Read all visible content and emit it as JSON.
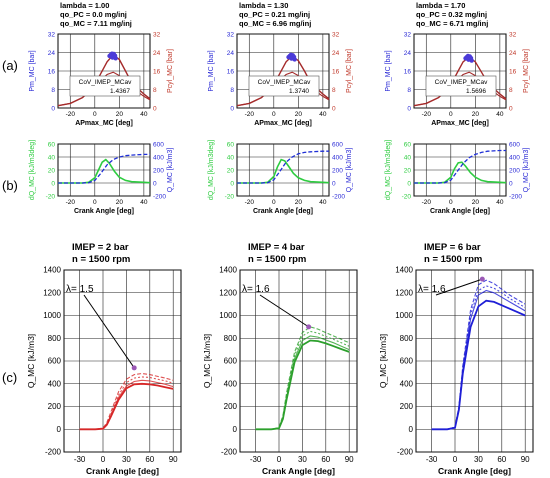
{
  "row_labels": [
    "(a)",
    "(b)",
    "(c)"
  ],
  "colors": {
    "blue_axis": "#2b2bd6",
    "red_axis": "#c0392b",
    "green_axis": "#2ecc40",
    "grid": "#222222"
  },
  "chart_data": [
    {
      "id": "a1",
      "type": "line",
      "header": [
        "lambda = 1.00",
        "qo_PC = 0.0 mg/inj",
        "qo_MC = 7.11 mg/inj"
      ],
      "xlabel": "APmax_MC [deg]",
      "ylabel": "Pm_MC [bar]",
      "y2label": "Pcyl_MC [bar]",
      "xlim": [
        -30,
        45
      ],
      "xticks": [
        -20,
        0,
        20,
        40
      ],
      "ylim": [
        0,
        32
      ],
      "yticks": [
        0,
        8,
        16,
        24,
        32
      ],
      "y2lim": [
        0,
        32
      ],
      "y2ticks": [
        0,
        8,
        16,
        24,
        32
      ],
      "box_label": "CoV_IMEP_MCav",
      "box_value": "1.4367",
      "series": [
        {
          "role": "motored",
          "axis": "y2",
          "x": [
            -30,
            -20,
            -10,
            0,
            5,
            10,
            15,
            20,
            25,
            30,
            40,
            45
          ],
          "y": [
            1,
            2,
            4.5,
            9,
            12,
            14.5,
            15.5,
            14,
            11.5,
            9,
            5,
            3.5
          ]
        },
        {
          "role": "firing",
          "axis": "y2",
          "x": [
            -30,
            -20,
            -10,
            0,
            5,
            10,
            15,
            20,
            25,
            30,
            40,
            45
          ],
          "y": [
            1,
            2,
            4.5,
            10,
            15,
            20,
            23,
            21,
            16,
            11,
            6,
            4
          ]
        }
      ],
      "scatter": {
        "x": [
          12,
          13,
          14,
          15,
          16,
          17,
          13.5,
          15.5,
          16.5,
          14.5
        ],
        "y": [
          22.5,
          23,
          23.5,
          22.8,
          22,
          21.5,
          22.2,
          23.4,
          22.6,
          21.8
        ]
      }
    },
    {
      "id": "a2",
      "type": "line",
      "header": [
        "lambda = 1.30",
        "qo_PC = 0.21 mg/inj",
        "qo_MC = 6.96 mg/inj"
      ],
      "xlabel": "APmax_MC [deg]",
      "ylabel": "Pm_MC [bar]",
      "y2label": "Pcyl_MC [bar]",
      "xlim": [
        -30,
        45
      ],
      "xticks": [
        -20,
        0,
        20,
        40
      ],
      "ylim": [
        0,
        32
      ],
      "yticks": [
        0,
        8,
        16,
        24,
        32
      ],
      "y2lim": [
        0,
        32
      ],
      "y2ticks": [
        0,
        8,
        16,
        24,
        32
      ],
      "box_label": "CoV_IMEP_MCav",
      "box_value": "1.3740",
      "series": [
        {
          "role": "motored",
          "axis": "y2",
          "x": [
            -30,
            -20,
            -10,
            0,
            5,
            10,
            15,
            20,
            25,
            30,
            40,
            45
          ],
          "y": [
            1,
            2,
            4.5,
            9,
            12,
            14.5,
            15.5,
            14,
            11.5,
            9,
            5,
            3.5
          ]
        },
        {
          "role": "firing",
          "axis": "y2",
          "x": [
            -30,
            -20,
            -10,
            0,
            5,
            10,
            15,
            20,
            25,
            30,
            40,
            45
          ],
          "y": [
            1,
            2,
            4.5,
            10,
            15,
            20,
            22.5,
            20.5,
            16,
            11,
            6,
            4
          ]
        }
      ],
      "scatter": {
        "x": [
          12,
          13,
          14,
          15,
          16,
          17,
          13.5,
          15.5,
          16.5,
          14.5
        ],
        "y": [
          22,
          22.5,
          23,
          22.3,
          21.5,
          21,
          21.8,
          22.8,
          22.1,
          21.4
        ]
      }
    },
    {
      "id": "a3",
      "type": "line",
      "header": [
        "lambda = 1.70",
        "qo_PC = 0.32 mg/inj",
        "qo_MC = 6.71 mg/inj"
      ],
      "xlabel": "APmax_MC [deg]",
      "ylabel": "Pm_MC [bar]",
      "y2label": "Pcyl_MC [bar]",
      "xlim": [
        -30,
        45
      ],
      "xticks": [
        -20,
        0,
        20,
        40
      ],
      "ylim": [
        0,
        32
      ],
      "yticks": [
        0,
        8,
        16,
        24,
        32
      ],
      "y2lim": [
        0,
        32
      ],
      "y2ticks": [
        0,
        8,
        16,
        24,
        32
      ],
      "box_label": "CoV_IMEP_MCav",
      "box_value": "1.5696",
      "series": [
        {
          "role": "motored",
          "axis": "y2",
          "x": [
            -30,
            -20,
            -10,
            0,
            5,
            10,
            15,
            20,
            25,
            30,
            40,
            45
          ],
          "y": [
            1,
            2,
            4.5,
            9,
            12,
            14.5,
            15.5,
            14,
            11.5,
            9,
            5,
            3.5
          ]
        },
        {
          "role": "firing",
          "axis": "y2",
          "x": [
            -30,
            -20,
            -10,
            0,
            5,
            10,
            15,
            20,
            25,
            30,
            40,
            45
          ],
          "y": [
            1,
            2,
            4.5,
            10,
            15,
            20,
            22,
            20,
            15.5,
            11,
            6,
            4
          ]
        }
      ],
      "scatter": {
        "x": [
          12,
          13,
          14,
          15,
          16,
          17,
          13.5,
          15.5,
          16.5,
          14.5
        ],
        "y": [
          21.5,
          22,
          22.5,
          21.8,
          21,
          20.5,
          21.3,
          22.3,
          21.6,
          20.9
        ]
      }
    },
    {
      "id": "b1",
      "type": "line",
      "xlabel": "Crank Angle [deg]",
      "ylabel": "dQ_MC [kJ/m3deg]",
      "y2label": "Q_MC [kJ/m3]",
      "xlim": [
        -30,
        45
      ],
      "xticks": [
        -20,
        0,
        20,
        40
      ],
      "ylim": [
        -20,
        60
      ],
      "yticks": [
        -20,
        0,
        20,
        40,
        60
      ],
      "y2lim": [
        -200,
        600
      ],
      "y2ticks": [
        -200,
        0,
        200,
        400,
        600
      ],
      "series": [
        {
          "role": "dQ",
          "axis": "y",
          "x": [
            -30,
            -10,
            -5,
            0,
            3,
            6,
            9,
            12,
            16,
            20,
            25,
            30,
            40,
            45
          ],
          "y": [
            0,
            0,
            1,
            8,
            20,
            32,
            36,
            30,
            18,
            9,
            4,
            2,
            1,
            0.5
          ]
        },
        {
          "role": "Q",
          "axis": "y2",
          "x": [
            -30,
            -10,
            -5,
            0,
            5,
            10,
            15,
            20,
            25,
            30,
            40,
            45
          ],
          "y": [
            0,
            0,
            5,
            40,
            150,
            280,
            360,
            400,
            420,
            430,
            440,
            440
          ]
        }
      ]
    },
    {
      "id": "b2",
      "type": "line",
      "xlabel": "Crank Angle [deg]",
      "ylabel": "dQ_MC [kJ/m3deg]",
      "y2label": "Q_MC [kJ/m3]",
      "xlim": [
        -30,
        45
      ],
      "xticks": [
        -20,
        0,
        20,
        40
      ],
      "ylim": [
        -20,
        60
      ],
      "yticks": [
        -20,
        0,
        20,
        40,
        60
      ],
      "y2lim": [
        -200,
        600
      ],
      "y2ticks": [
        -200,
        0,
        200,
        400,
        600
      ],
      "series": [
        {
          "role": "dQ",
          "axis": "y",
          "x": [
            -30,
            -10,
            -5,
            0,
            3,
            6,
            9,
            12,
            16,
            20,
            25,
            30,
            40,
            45
          ],
          "y": [
            0,
            0,
            1,
            10,
            25,
            36,
            34,
            26,
            15,
            8,
            4,
            2,
            1,
            0.5
          ]
        },
        {
          "role": "Q",
          "axis": "y2",
          "x": [
            -30,
            -10,
            -5,
            0,
            5,
            10,
            15,
            20,
            25,
            30,
            40,
            45
          ],
          "y": [
            0,
            0,
            5,
            50,
            180,
            320,
            400,
            450,
            470,
            480,
            490,
            490
          ]
        }
      ]
    },
    {
      "id": "b3",
      "type": "line",
      "xlabel": "Crank Angle [deg]",
      "ylabel": "dQ_MC [kJ/m3deg]",
      "y2label": "Q_MC [kJ/m3]",
      "xlim": [
        -30,
        45
      ],
      "xticks": [
        -20,
        0,
        20,
        40
      ],
      "ylim": [
        -20,
        60
      ],
      "yticks": [
        -20,
        0,
        20,
        40,
        60
      ],
      "y2lim": [
        -200,
        600
      ],
      "y2ticks": [
        -200,
        0,
        200,
        400,
        600
      ],
      "series": [
        {
          "role": "dQ",
          "axis": "y",
          "x": [
            -30,
            -10,
            -5,
            0,
            3,
            6,
            9,
            12,
            16,
            20,
            25,
            30,
            40,
            45
          ],
          "y": [
            0,
            0,
            1,
            9,
            22,
            31,
            32,
            26,
            16,
            9,
            4,
            2,
            1,
            0.5
          ]
        },
        {
          "role": "Q",
          "axis": "y2",
          "x": [
            -30,
            -10,
            -5,
            0,
            5,
            10,
            15,
            20,
            25,
            30,
            40,
            45
          ],
          "y": [
            0,
            0,
            5,
            45,
            170,
            300,
            390,
            440,
            470,
            490,
            500,
            500
          ]
        }
      ]
    },
    {
      "id": "c1",
      "type": "line",
      "title": [
        "IMEP = 2 bar",
        "n = 1500 rpm"
      ],
      "xlabel": "Crank Angle [deg]",
      "ylabel": "Q_MC [kJ/m3]",
      "xlim": [
        -50,
        100
      ],
      "xticks": [
        -30,
        0,
        30,
        60,
        90
      ],
      "ylim": [
        -200,
        1400
      ],
      "yticks": [
        -200,
        0,
        200,
        400,
        600,
        800,
        1000,
        1200,
        1400
      ],
      "annotation": "λ= 1.5",
      "annotation_point": [
        40,
        540
      ],
      "color": "#d62728",
      "series": [
        {
          "x": [
            -30,
            -10,
            0,
            5,
            10,
            20,
            30,
            40,
            50,
            60,
            70,
            80,
            90
          ],
          "y": [
            0,
            0,
            10,
            60,
            150,
            330,
            440,
            480,
            490,
            480,
            465,
            450,
            430
          ]
        },
        {
          "x": [
            -30,
            -10,
            0,
            5,
            10,
            20,
            30,
            40,
            50,
            60,
            70,
            80,
            90
          ],
          "y": [
            0,
            0,
            8,
            50,
            130,
            300,
            410,
            450,
            460,
            455,
            440,
            425,
            405
          ]
        },
        {
          "x": [
            -30,
            -10,
            0,
            5,
            10,
            20,
            30,
            40,
            50,
            60,
            70,
            80,
            90
          ],
          "y": [
            0,
            0,
            6,
            45,
            120,
            280,
            380,
            420,
            430,
            425,
            410,
            395,
            375
          ]
        },
        {
          "x": [
            -30,
            -10,
            0,
            5,
            10,
            20,
            30,
            40,
            50,
            60,
            70,
            80,
            90
          ],
          "y": [
            0,
            0,
            5,
            40,
            110,
            260,
            360,
            395,
            400,
            395,
            385,
            370,
            355
          ]
        }
      ]
    },
    {
      "id": "c2",
      "type": "line",
      "title": [
        "IMEP = 4 bar",
        "n = 1500 rpm"
      ],
      "xlabel": "Crank Angle [deg]",
      "ylabel": "Q_MC [kJ/m3]",
      "xlim": [
        -50,
        100
      ],
      "xticks": [
        -30,
        0,
        30,
        60,
        90
      ],
      "ylim": [
        -200,
        1400
      ],
      "yticks": [
        -200,
        0,
        200,
        400,
        600,
        800,
        1000,
        1200,
        1400
      ],
      "annotation": "λ= 1.6",
      "annotation_point": [
        38,
        900
      ],
      "color": "#2ca02c",
      "series": [
        {
          "x": [
            -30,
            -10,
            0,
            5,
            10,
            20,
            30,
            40,
            50,
            60,
            70,
            80,
            90
          ],
          "y": [
            0,
            0,
            15,
            120,
            330,
            680,
            850,
            900,
            880,
            850,
            820,
            790,
            760
          ]
        },
        {
          "x": [
            -30,
            -10,
            0,
            5,
            10,
            20,
            30,
            40,
            50,
            60,
            70,
            80,
            90
          ],
          "y": [
            0,
            0,
            12,
            110,
            310,
            650,
            820,
            860,
            845,
            815,
            790,
            760,
            730
          ]
        },
        {
          "x": [
            -30,
            -10,
            0,
            5,
            10,
            20,
            30,
            40,
            50,
            60,
            70,
            80,
            90
          ],
          "y": [
            0,
            0,
            10,
            100,
            290,
            620,
            780,
            820,
            810,
            785,
            760,
            730,
            700
          ]
        },
        {
          "x": [
            -30,
            -10,
            0,
            5,
            10,
            20,
            30,
            40,
            50,
            60,
            70,
            80,
            90
          ],
          "y": [
            0,
            0,
            8,
            90,
            270,
            590,
            740,
            780,
            775,
            755,
            730,
            705,
            680
          ]
        }
      ]
    },
    {
      "id": "c3",
      "type": "line",
      "title": [
        "IMEP = 6 bar",
        "n = 1500 rpm"
      ],
      "xlabel": "Crank Angle [deg]",
      "ylabel": "Q_MC [kJ/m3]",
      "xlim": [
        -50,
        100
      ],
      "xticks": [
        -30,
        0,
        30,
        60,
        90
      ],
      "ylim": [
        -200,
        1400
      ],
      "yticks": [
        -200,
        0,
        200,
        400,
        600,
        800,
        1000,
        1200,
        1400
      ],
      "annotation": "λ= 1.6",
      "annotation_point": [
        35,
        1320
      ],
      "color": "#1f1fd6",
      "series": [
        {
          "x": [
            -30,
            -10,
            0,
            5,
            10,
            20,
            30,
            40,
            50,
            60,
            70,
            80,
            90
          ],
          "y": [
            0,
            0,
            20,
            200,
            560,
            1050,
            1270,
            1310,
            1280,
            1230,
            1180,
            1140,
            1100
          ]
        },
        {
          "x": [
            -30,
            -10,
            0,
            5,
            10,
            20,
            30,
            40,
            50,
            60,
            70,
            80,
            90
          ],
          "y": [
            0,
            0,
            18,
            190,
            540,
            1010,
            1220,
            1260,
            1240,
            1200,
            1150,
            1110,
            1070
          ]
        },
        {
          "x": [
            -30,
            -10,
            0,
            5,
            10,
            20,
            30,
            40,
            50,
            60,
            70,
            80,
            90
          ],
          "y": [
            0,
            0,
            16,
            180,
            520,
            970,
            1180,
            1220,
            1200,
            1160,
            1120,
            1080,
            1040
          ]
        },
        {
          "x": [
            -30,
            -10,
            0,
            5,
            10,
            20,
            30,
            40,
            50,
            60,
            70,
            80,
            90
          ],
          "y": [
            0,
            0,
            14,
            170,
            490,
            900,
            1080,
            1130,
            1120,
            1090,
            1060,
            1030,
            1000
          ]
        }
      ]
    }
  ]
}
